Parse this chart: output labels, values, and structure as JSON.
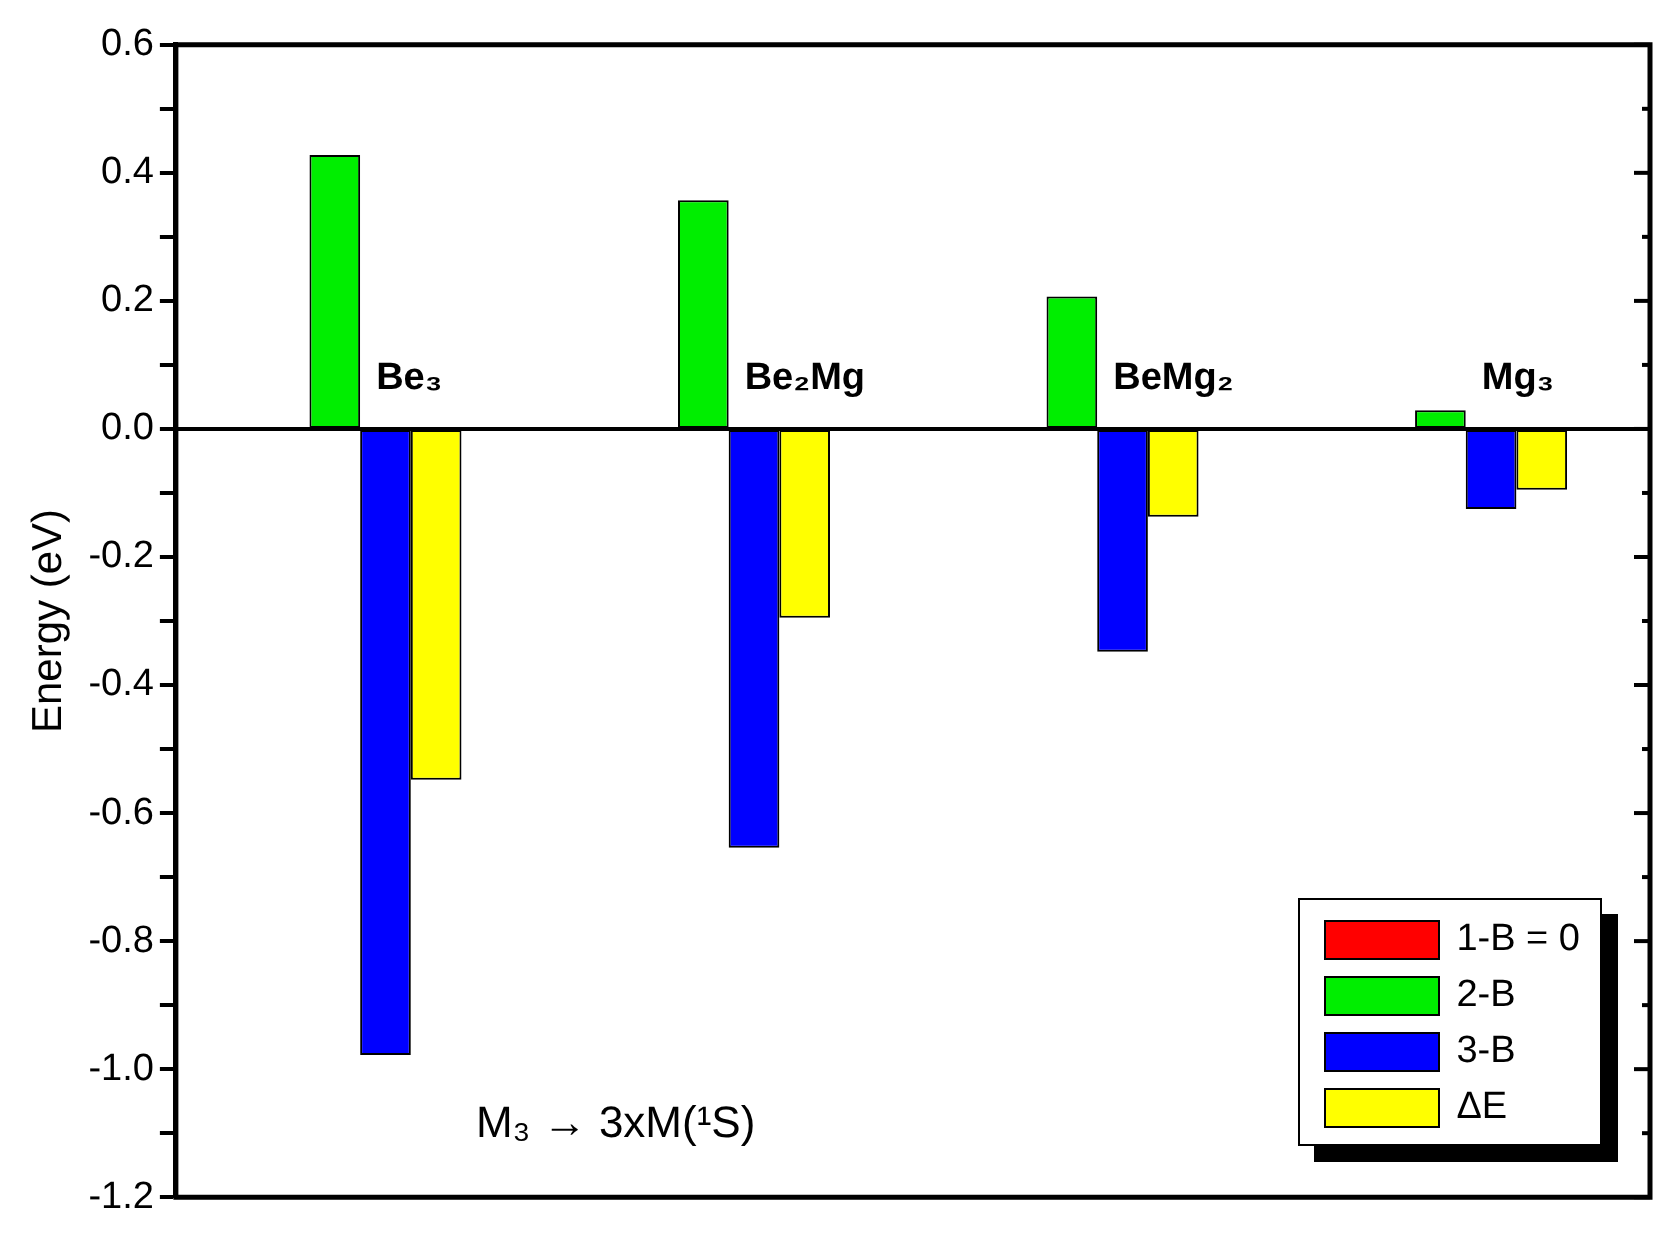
{
  "chart_data": {
    "type": "bar",
    "ylabel": "Energy (eV)",
    "categories": [
      "Be₃",
      "Be₂Mg",
      "BeMg₂",
      "Mg₃"
    ],
    "series": [
      {
        "name": "1-B = 0",
        "color": "#ff0000",
        "values": [
          0,
          0,
          0,
          0
        ]
      },
      {
        "name": "2-B",
        "color": "#00ee00",
        "values": [
          0.428,
          0.357,
          0.207,
          0.029
        ]
      },
      {
        "name": "3-B",
        "color": "#0000ff",
        "values": [
          -0.978,
          -0.654,
          -0.348,
          -0.125
        ]
      },
      {
        "name": "ΔE",
        "color": "#ffff00",
        "values": [
          -0.548,
          -0.295,
          -0.137,
          -0.095
        ]
      }
    ],
    "ylim": [
      -1.2,
      0.6
    ],
    "yticks": [
      -1.2,
      {
        "value": -1.1,
        "label": null
      },
      {
        "value": -1,
        "label": "-1.0"
      },
      {
        "value": -0.9,
        "label": null
      },
      -0.8,
      {
        "value": -0.7,
        "label": null
      },
      -0.6,
      {
        "value": -0.5,
        "label": null
      },
      -0.4,
      {
        "value": -0.3,
        "label": null
      },
      -0.2,
      {
        "value": -0.1,
        "label": null
      },
      {
        "value": 0,
        "label": "0.0"
      },
      {
        "value": 0.1,
        "label": null
      },
      0.2,
      {
        "value": 0.3,
        "label": null
      },
      0.4,
      {
        "value": 0.5,
        "label": null
      },
      0.6
    ],
    "annotations": [
      "M₃ → 3xM(¹S)"
    ],
    "legend": "bottom right",
    "grid": false
  }
}
